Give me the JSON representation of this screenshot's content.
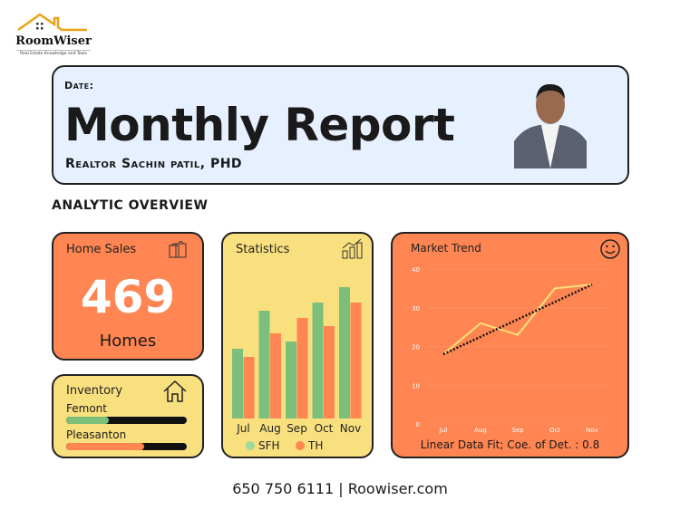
{
  "logo": {
    "name": "RoomWiser",
    "tagline": "Real Estate Knowledge and Tools"
  },
  "header": {
    "date_label": "Date:",
    "title": "Monthly Report",
    "realtor": "Realtor Sachin patil, PHD"
  },
  "section_title": "ANALYTIC OVERVIEW",
  "home_sales": {
    "title": "Home Sales",
    "value": "469",
    "unit": "Homes",
    "icon": "shopping-bags-icon"
  },
  "inventory": {
    "title": "Inventory",
    "icon": "house-icon",
    "items": [
      {
        "label": "Femont",
        "fraction": 0.35,
        "color": "#7CBF7A"
      },
      {
        "label": "Pleasanton",
        "fraction": 0.65,
        "color": "#FF8552"
      }
    ]
  },
  "footer": {
    "phone": "650 750 6111",
    "separator": "|",
    "website": "Roowiser.com"
  },
  "colors": {
    "orange": "#FF8552",
    "yellow": "#F9E07F",
    "blue": "#E6F0FF",
    "green": "#7CBF7A",
    "line": "#FFE27A"
  },
  "chart_data": [
    {
      "type": "bar",
      "title": "Statistics",
      "icon": "growth-chart-icon",
      "categories": [
        "Jul",
        "Aug",
        "Sep",
        "Oct",
        "Nov"
      ],
      "series": [
        {
          "name": "SFH",
          "values": [
            77,
            119,
            85,
            128,
            145
          ],
          "color": "#7CBF7A"
        },
        {
          "name": "TH",
          "values": [
            68,
            94,
            111,
            102,
            128
          ],
          "color": "#FF8552"
        }
      ],
      "ylim": [
        0,
        160
      ],
      "grid": false,
      "legend": "bottom"
    },
    {
      "type": "line",
      "title": "Market Trend",
      "icon": "smiley-icon",
      "categories": [
        "Jul",
        "Aug",
        "Sep",
        "Oct",
        "Nov"
      ],
      "series": [
        {
          "values": [
            18,
            26,
            23,
            35,
            36
          ],
          "color": "#FFE27A"
        }
      ],
      "trendline": {
        "start": 18,
        "end": 36,
        "style": "dotted"
      },
      "yticks": [
        0,
        10,
        20,
        30,
        40
      ],
      "ylim": [
        0,
        40
      ],
      "grid": true,
      "caption": "Linear Data Fit; Coe. of Det. : 0.8"
    }
  ]
}
